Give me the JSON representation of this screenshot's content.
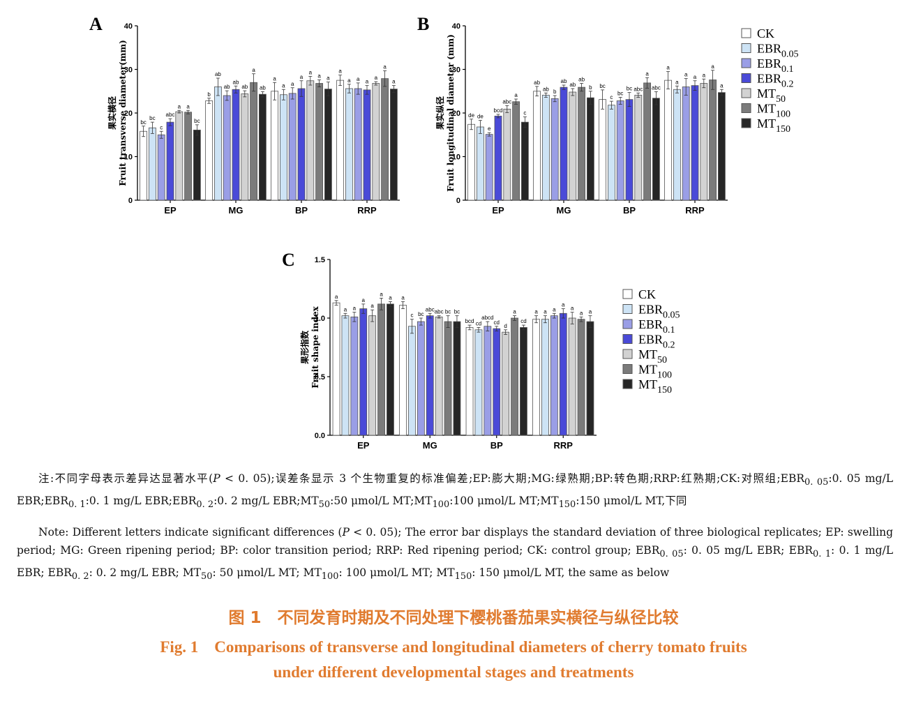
{
  "chart_data": [
    {
      "panel": "A",
      "type": "bar",
      "ylabel_cn": "果实横径",
      "ylabel_en": "Fruit transverse diameter(mm)",
      "ylim": [
        0,
        40
      ],
      "yticks": [
        0,
        10,
        20,
        30,
        40
      ],
      "categories": [
        "EP",
        "MG",
        "BP",
        "RRP"
      ],
      "series": [
        {
          "name": "CK",
          "values": [
            15.8,
            22.8,
            25.0,
            27.5
          ],
          "err": [
            1.2,
            0.6,
            2.0,
            1.2
          ],
          "sig": [
            "bc",
            "b",
            "a",
            "a"
          ]
        },
        {
          "name": "EBR0.05",
          "values": [
            16.6,
            26.0,
            24.2,
            25.6
          ],
          "err": [
            1.3,
            2.0,
            1.2,
            1.0
          ],
          "sig": [
            "bc",
            "ab",
            "a",
            "a"
          ]
        },
        {
          "name": "EBR0.1",
          "values": [
            15.0,
            24.0,
            24.5,
            25.6
          ],
          "err": [
            0.8,
            1.1,
            1.3,
            1.3
          ],
          "sig": [
            "c",
            "ab",
            "a",
            "a"
          ]
        },
        {
          "name": "EBR0.2",
          "values": [
            17.9,
            25.4,
            25.6,
            25.3
          ],
          "err": [
            0.8,
            0.8,
            1.8,
            1.0
          ],
          "sig": [
            "abc",
            "ab",
            "a",
            "a"
          ]
        },
        {
          "name": "MT50",
          "values": [
            20.3,
            24.4,
            27.4,
            26.8
          ],
          "err": [
            0.3,
            0.7,
            1.0,
            0.4
          ],
          "sig": [
            "a",
            "ab",
            "a",
            "a"
          ]
        },
        {
          "name": "MT100",
          "values": [
            20.2,
            27.0,
            26.8,
            27.9
          ],
          "err": [
            0.4,
            2.0,
            0.8,
            1.8
          ],
          "sig": [
            "a",
            "a",
            "a",
            "a"
          ]
        },
        {
          "name": "MT150",
          "values": [
            16.1,
            24.3,
            25.5,
            25.5
          ],
          "err": [
            1.2,
            0.6,
            1.6,
            0.8
          ],
          "sig": [
            "bc",
            "ab",
            "a",
            "a"
          ]
        }
      ]
    },
    {
      "panel": "B",
      "type": "bar",
      "ylabel_cn": "果实纵径",
      "ylabel_en": "Fruit longitudinal diameter (mm)",
      "ylim": [
        0,
        40
      ],
      "yticks": [
        0,
        10,
        20,
        30,
        40
      ],
      "categories": [
        "EP",
        "MG",
        "BP",
        "RRP"
      ],
      "series": [
        {
          "name": "CK",
          "values": [
            17.4,
            25.0,
            23.1,
            27.5
          ],
          "err": [
            1.2,
            1.1,
            2.2,
            2.0
          ],
          "sig": [
            "de",
            "ab",
            "bc",
            "a"
          ]
        },
        {
          "name": "EBR0.05",
          "values": [
            16.8,
            24.1,
            21.8,
            25.4
          ],
          "err": [
            1.5,
            0.5,
            0.9,
            0.8
          ],
          "sig": [
            "de",
            "ab",
            "c",
            "a"
          ]
        },
        {
          "name": "EBR0.1",
          "values": [
            15.1,
            23.3,
            22.8,
            26.0
          ],
          "err": [
            0.4,
            0.7,
            0.8,
            1.9
          ],
          "sig": [
            "e",
            "b",
            "bc",
            "a"
          ]
        },
        {
          "name": "EBR0.2",
          "values": [
            19.3,
            25.9,
            23.1,
            26.3
          ],
          "err": [
            0.4,
            0.5,
            1.6,
            1.1
          ],
          "sig": [
            "bcd",
            "ab",
            "bc",
            "a"
          ]
        },
        {
          "name": "MT50",
          "values": [
            20.9,
            24.8,
            24.1,
            26.8
          ],
          "err": [
            0.8,
            0.8,
            0.5,
            1.0
          ],
          "sig": [
            "abc",
            "ab",
            "abc",
            "a"
          ]
        },
        {
          "name": "MT100",
          "values": [
            22.6,
            25.9,
            26.9,
            27.6
          ],
          "err": [
            0.6,
            0.9,
            1.2,
            2.2
          ],
          "sig": [
            "a",
            "ab",
            "a",
            "a"
          ]
        },
        {
          "name": "MT150",
          "values": [
            17.9,
            23.5,
            23.4,
            24.7
          ],
          "err": [
            1.2,
            1.5,
            1.5,
            0.7
          ],
          "sig": [
            "c",
            "b",
            "abc",
            "a"
          ]
        }
      ]
    },
    {
      "panel": "C",
      "type": "bar",
      "ylabel_cn": "果形指数",
      "ylabel_en": "Fruit shape index",
      "ylim": [
        0,
        1.5
      ],
      "yticks": [
        0.0,
        0.5,
        1.0,
        1.5
      ],
      "categories": [
        "EP",
        "MG",
        "BP",
        "RRP"
      ],
      "series": [
        {
          "name": "CK",
          "values": [
            1.13,
            1.11,
            0.92,
            0.99
          ],
          "err": [
            0.02,
            0.03,
            0.02,
            0.03
          ],
          "sig": [
            "a",
            "a",
            "bcd",
            "a"
          ]
        },
        {
          "name": "EBR0.05",
          "values": [
            1.02,
            0.93,
            0.9,
            0.99
          ],
          "err": [
            0.02,
            0.06,
            0.02,
            0.03
          ],
          "sig": [
            "a",
            "c",
            "cd",
            "a"
          ]
        },
        {
          "name": "EBR0.1",
          "values": [
            1.01,
            0.97,
            0.93,
            1.02
          ],
          "err": [
            0.04,
            0.03,
            0.04,
            0.02
          ],
          "sig": [
            "a",
            "bc",
            "abcd",
            "a"
          ]
        },
        {
          "name": "EBR0.2",
          "values": [
            1.08,
            1.02,
            0.91,
            1.04
          ],
          "err": [
            0.04,
            0.02,
            0.02,
            0.04
          ],
          "sig": [
            "a",
            "abc",
            "cd",
            "a"
          ]
        },
        {
          "name": "MT50",
          "values": [
            1.02,
            1.01,
            0.88,
            1.0
          ],
          "err": [
            0.05,
            0.01,
            0.02,
            0.05
          ],
          "sig": [
            "a",
            "abc",
            "d",
            "a"
          ]
        },
        {
          "name": "MT100",
          "values": [
            1.12,
            0.97,
            1.0,
            0.99
          ],
          "err": [
            0.05,
            0.05,
            0.02,
            0.02
          ],
          "sig": [
            "a",
            "bc",
            "a",
            "a"
          ]
        },
        {
          "name": "MT150",
          "values": [
            1.12,
            0.97,
            0.92,
            0.97
          ],
          "err": [
            0.02,
            0.05,
            0.02,
            0.05
          ],
          "sig": [
            "a",
            "bc",
            "cd",
            "a"
          ]
        }
      ]
    }
  ],
  "legend": [
    {
      "base": "CK",
      "sub": "",
      "color": "#ffffff"
    },
    {
      "base": "EBR",
      "sub": "0.05",
      "color": "#cde3f5"
    },
    {
      "base": "EBR",
      "sub": "0.1",
      "color": "#9a9ee6"
    },
    {
      "base": "EBR",
      "sub": "0.2",
      "color": "#4a4ad8"
    },
    {
      "base": "MT",
      "sub": "50",
      "color": "#d2d2d2"
    },
    {
      "base": "MT",
      "sub": "100",
      "color": "#7b7b7b"
    },
    {
      "base": "MT",
      "sub": "150",
      "color": "#262626"
    }
  ],
  "note_cn": {
    "t1": "注:不同字母表示差异达显著水平(",
    "p": "P",
    "t2": " < 0. 05);误差条显示 3 个生物重复的标准偏差;EP:膨大期;MG:绿熟期;BP:转色期;RRP:红熟期;CK:对照组;",
    "e1": "EBR",
    "e1s": "0. 05",
    "e1d": ":0. 05 mg/L EBR;",
    "e2": "EBR",
    "e2s": "0. 1",
    "e2d": ":0. 1 mg/L EBR;",
    "e3": "EBR",
    "e3s": "0. 2",
    "e3d": ":0. 2 mg/L EBR;",
    "m1": "MT",
    "m1s": "50",
    "m1d": ":50 μmol/L MT;",
    "m2": "MT",
    "m2s": "100",
    "m2d": ":100 μmol/L MT;",
    "m3": "MT",
    "m3s": "150",
    "m3d": ":150 μmol/L MT,下同"
  },
  "note_en": {
    "t1": "Note: Different letters indicate significant differences (",
    "p": "P",
    "t2": " < 0. 05); The error bar displays the standard deviation of three biological replicates; EP: swelling period; MG: Green ripening period; BP: color transition period; RRP: Red ripening period; CK: control group; ",
    "e1": "EBR",
    "e1s": "0. 05",
    "e1d": ": 0. 05 mg/L EBR; ",
    "e2": "EBR",
    "e2s": "0. 1",
    "e2d": ": 0. 1 mg/L EBR; ",
    "e3": "EBR",
    "e3s": "0. 2",
    "e3d": ": 0. 2 mg/L EBR; ",
    "m1": "MT",
    "m1s": "50",
    "m1d": ": 50 μmol/L MT; ",
    "m2": "MT",
    "m2s": "100",
    "m2d": ": 100 μmol/L MT; ",
    "m3": "MT",
    "m3s": "150",
    "m3d": ": 150 μmol/L MT, the same as below"
  },
  "caption": {
    "cn": "图 1　不同发育时期及不同处理下樱桃番茄果实横径与纵径比较",
    "en_line1": "Fig. 1　Comparisons of transverse and longitudinal diameters of cherry tomato fruits",
    "en_line2": "under different developmental stages and treatments"
  }
}
